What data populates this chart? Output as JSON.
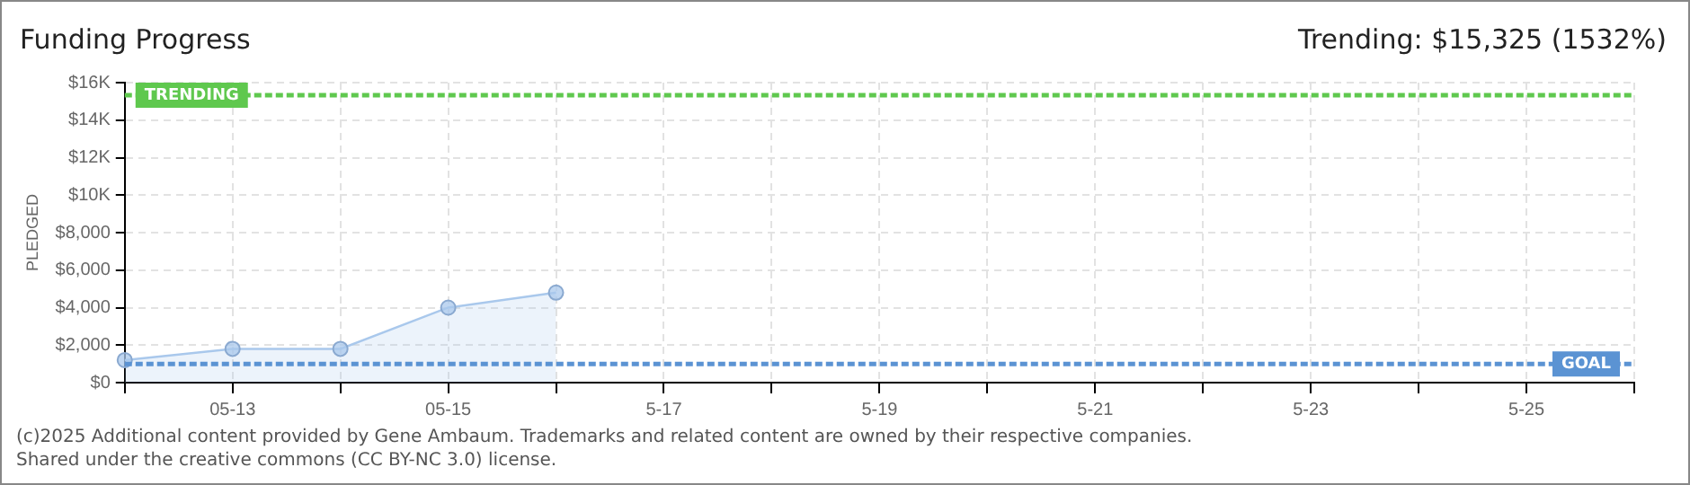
{
  "chart_data": {
    "type": "area",
    "title": "Funding Progress",
    "ylabel": "PLEDGED",
    "categories": [
      null,
      "05-13",
      null,
      "05-15",
      null,
      "5-17",
      null,
      "5-19",
      null,
      "5-21",
      null,
      "5-23",
      null,
      "5-25",
      null
    ],
    "series": [
      {
        "color": "#a9c8ec",
        "values": [
          1200,
          1800,
          1800,
          4000,
          4800,
          null,
          null,
          null,
          null,
          null,
          null,
          null,
          null,
          null,
          null
        ]
      }
    ],
    "ylim": [
      0,
      16000
    ],
    "yticks": [
      {
        "value": 0,
        "label": "$0"
      },
      {
        "value": 2000,
        "label": "$2,000"
      },
      {
        "value": 4000,
        "label": "$4,000"
      },
      {
        "value": 6000,
        "label": "$6,000"
      },
      {
        "value": 8000,
        "label": "$8,000"
      },
      {
        "value": 10000,
        "label": "$10K"
      },
      {
        "value": 12000,
        "label": "$12K"
      },
      {
        "value": 14000,
        "label": "$14K"
      },
      {
        "value": 16000,
        "label": "$16K"
      }
    ],
    "ref_lines": [
      {
        "axis": "y",
        "value": 15325,
        "label": "TRENDING",
        "color": "#5fc84e",
        "line_style": "dashed"
      },
      {
        "axis": "y",
        "value": 1000,
        "label": "GOAL",
        "color": "#5b93d3",
        "line_style": "dashed"
      }
    ],
    "annotations": [
      "Trending: $15,325 (1532%)",
      "(c)2025 Additional content provided by Gene Ambaum. Trademarks and related content are owned by their respective companies.",
      "Shared under the creative commons (CC BY-NC 3.0) license."
    ],
    "grid": true,
    "marker": "circle",
    "legend": false
  }
}
